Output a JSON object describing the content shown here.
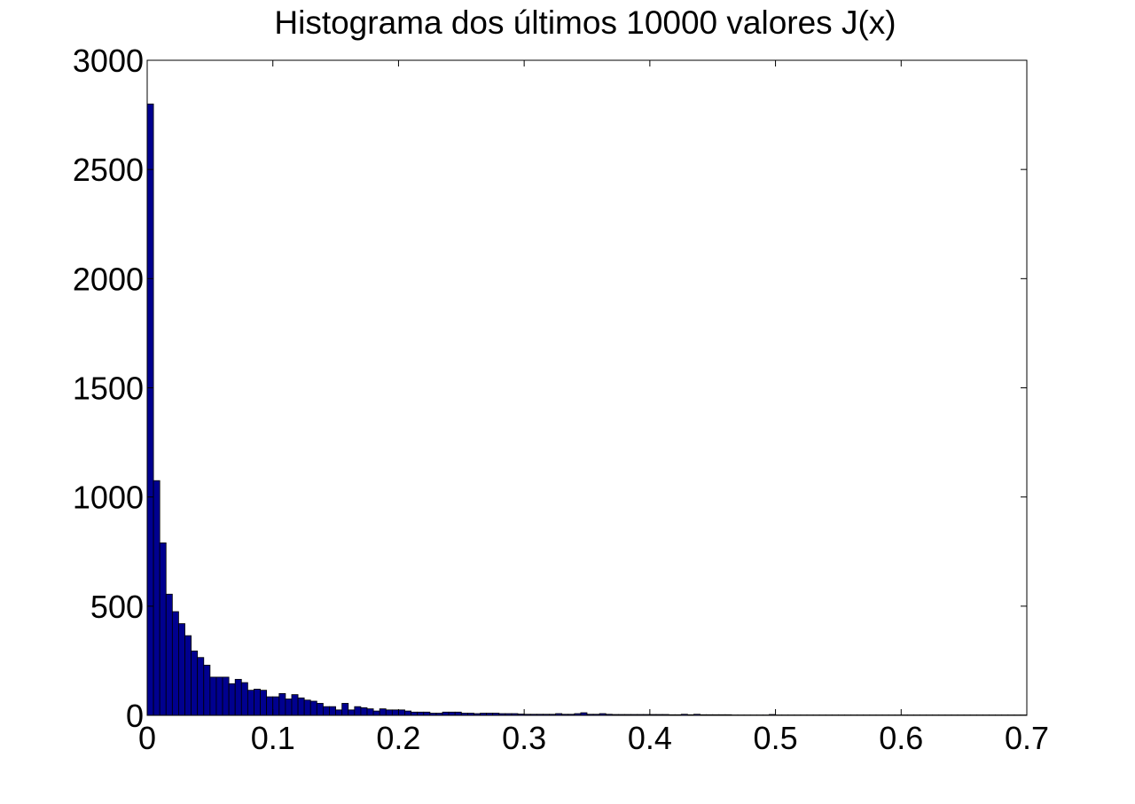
{
  "chart_data": {
    "type": "bar",
    "title": "Histograma dos últimos 10000 valores J(x)",
    "xlabel": "",
    "ylabel": "",
    "xlim": [
      0,
      0.7
    ],
    "ylim": [
      0,
      3000
    ],
    "grid": false,
    "bar_color": "#00008f",
    "bar_edge_color": "#000000",
    "x_ticks": [
      "0",
      "0.1",
      "0.2",
      "0.3",
      "0.4",
      "0.5",
      "0.6",
      "0.7"
    ],
    "x_tick_values": [
      0,
      0.1,
      0.2,
      0.3,
      0.4,
      0.5,
      0.6,
      0.7
    ],
    "y_ticks": [
      "0",
      "500",
      "1000",
      "1500",
      "2000",
      "2500",
      "3000"
    ],
    "y_tick_values": [
      0,
      500,
      1000,
      1500,
      2000,
      2500,
      3000
    ],
    "bin_width": 0.005,
    "bin_start": 0,
    "values": [
      2800,
      1075,
      790,
      555,
      475,
      420,
      365,
      295,
      265,
      230,
      175,
      175,
      175,
      145,
      165,
      150,
      115,
      120,
      115,
      85,
      85,
      100,
      75,
      95,
      80,
      70,
      65,
      55,
      40,
      40,
      25,
      55,
      25,
      40,
      35,
      30,
      20,
      30,
      25,
      25,
      25,
      20,
      15,
      15,
      15,
      10,
      10,
      15,
      15,
      15,
      10,
      10,
      8,
      10,
      10,
      10,
      8,
      8,
      8,
      6,
      5,
      5,
      5,
      5,
      5,
      8,
      5,
      5,
      8,
      12,
      5,
      5,
      8,
      5,
      4,
      4,
      4,
      4,
      4,
      4,
      4,
      4,
      4,
      3,
      3,
      5,
      3,
      5,
      3,
      3,
      3,
      3,
      3,
      2,
      2,
      2,
      2,
      2,
      2,
      4,
      2,
      2,
      2,
      2,
      2,
      2,
      2,
      2,
      2,
      2,
      2,
      2,
      2,
      2,
      2,
      2,
      2,
      2,
      2,
      2,
      2,
      2,
      2,
      2,
      2,
      2,
      2,
      2,
      2,
      2,
      2,
      2,
      2,
      2,
      2,
      2,
      2,
      2,
      2,
      2
    ]
  }
}
